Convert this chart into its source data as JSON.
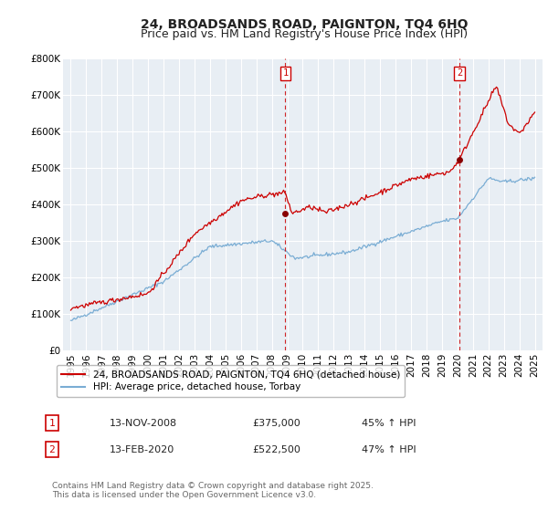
{
  "title": "24, BROADSANDS ROAD, PAIGNTON, TQ4 6HQ",
  "subtitle": "Price paid vs. HM Land Registry's House Price Index (HPI)",
  "ylim": [
    0,
    800000
  ],
  "xlim_left": 1994.5,
  "xlim_right": 2025.5,
  "yticks": [
    0,
    100000,
    200000,
    300000,
    400000,
    500000,
    600000,
    700000,
    800000
  ],
  "ytick_labels": [
    "£0",
    "£100K",
    "£200K",
    "£300K",
    "£400K",
    "£500K",
    "£600K",
    "£700K",
    "£800K"
  ],
  "xticks": [
    1995,
    1996,
    1997,
    1998,
    1999,
    2000,
    2001,
    2002,
    2003,
    2004,
    2005,
    2006,
    2007,
    2008,
    2009,
    2010,
    2011,
    2012,
    2013,
    2014,
    2015,
    2016,
    2017,
    2018,
    2019,
    2020,
    2021,
    2022,
    2023,
    2024,
    2025
  ],
  "background_color": "#ffffff",
  "plot_background_color": "#e8eef4",
  "grid_color": "#ffffff",
  "red_line_color": "#cc0000",
  "blue_line_color": "#7aadd4",
  "vline_color": "#cc0000",
  "vline1_x": 2008.87,
  "vline2_x": 2020.12,
  "marker1_x": 2008.87,
  "marker1_y": 375000,
  "marker2_x": 2020.12,
  "marker2_y": 522500,
  "marker_color": "#880000",
  "title_fontsize": 10,
  "subtitle_fontsize": 9,
  "tick_fontsize": 7.5,
  "legend_label_red": "24, BROADSANDS ROAD, PAIGNTON, TQ4 6HQ (detached house)",
  "legend_label_blue": "HPI: Average price, detached house, Torbay",
  "note1_num": "1",
  "note1_date": "13-NOV-2008",
  "note1_price": "£375,000",
  "note1_hpi": "45% ↑ HPI",
  "note2_num": "2",
  "note2_date": "13-FEB-2020",
  "note2_price": "£522,500",
  "note2_hpi": "47% ↑ HPI",
  "footnote": "Contains HM Land Registry data © Crown copyright and database right 2025.\nThis data is licensed under the Open Government Licence v3.0."
}
